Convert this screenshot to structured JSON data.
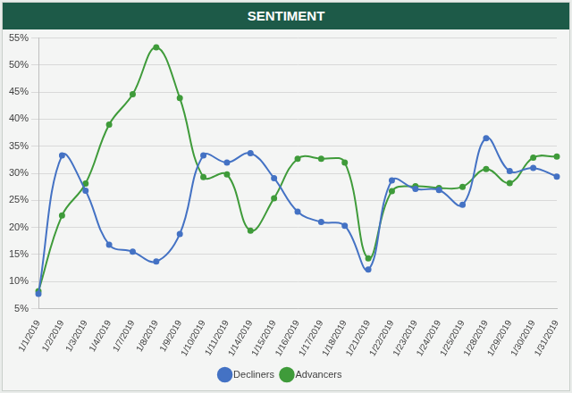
{
  "chart_data": {
    "type": "line",
    "title": "SENTIMENT",
    "categories": [
      "1/1/2019",
      "1/2/2019",
      "1/3/2019",
      "1/4/2019",
      "1/7/2019",
      "1/8/2019",
      "1/9/2019",
      "1/10/2019",
      "1/11/2019",
      "1/14/2019",
      "1/15/2019",
      "1/16/2019",
      "1/17/2019",
      "1/18/2019",
      "1/21/2019",
      "1/22/2019",
      "1/23/2019",
      "1/24/2019",
      "1/25/2019",
      "1/28/2019",
      "1/29/2019",
      "1/30/2019",
      "1/31/2019"
    ],
    "series": [
      {
        "name": "Decliners",
        "color": "#4472c4",
        "marker": "circle",
        "values": [
          7.7,
          33.3,
          26.8,
          16.8,
          15.5,
          13.7,
          18.8,
          33.3,
          32.0,
          33.7,
          29.1,
          22.9,
          21.0,
          20.3,
          12.2,
          28.7,
          27.1,
          26.9,
          24.2,
          36.5,
          30.4,
          31.0,
          29.4
        ]
      },
      {
        "name": "Advancers",
        "color": "#3f9b3a",
        "marker": "circle",
        "values": [
          8.2,
          22.2,
          28.1,
          39.0,
          44.6,
          53.3,
          43.9,
          29.3,
          29.8,
          19.4,
          25.4,
          32.7,
          32.7,
          32.0,
          14.3,
          26.7,
          27.6,
          27.3,
          27.5,
          30.8,
          28.2,
          32.9,
          33.1
        ]
      }
    ],
    "ylim": [
      5,
      55
    ],
    "yticks": [
      {
        "value": 5,
        "label": "5%"
      },
      {
        "value": 10,
        "label": "10%"
      },
      {
        "value": 15,
        "label": "15%"
      },
      {
        "value": 20,
        "label": "20%"
      },
      {
        "value": 25,
        "label": "25%"
      },
      {
        "value": 30,
        "label": "30%"
      },
      {
        "value": 35,
        "label": "35%"
      },
      {
        "value": 40,
        "label": "40%"
      },
      {
        "value": 45,
        "label": "45%"
      },
      {
        "value": 50,
        "label": "50%"
      },
      {
        "value": 55,
        "label": "55%"
      }
    ],
    "grid": true,
    "legend": "bottom"
  }
}
